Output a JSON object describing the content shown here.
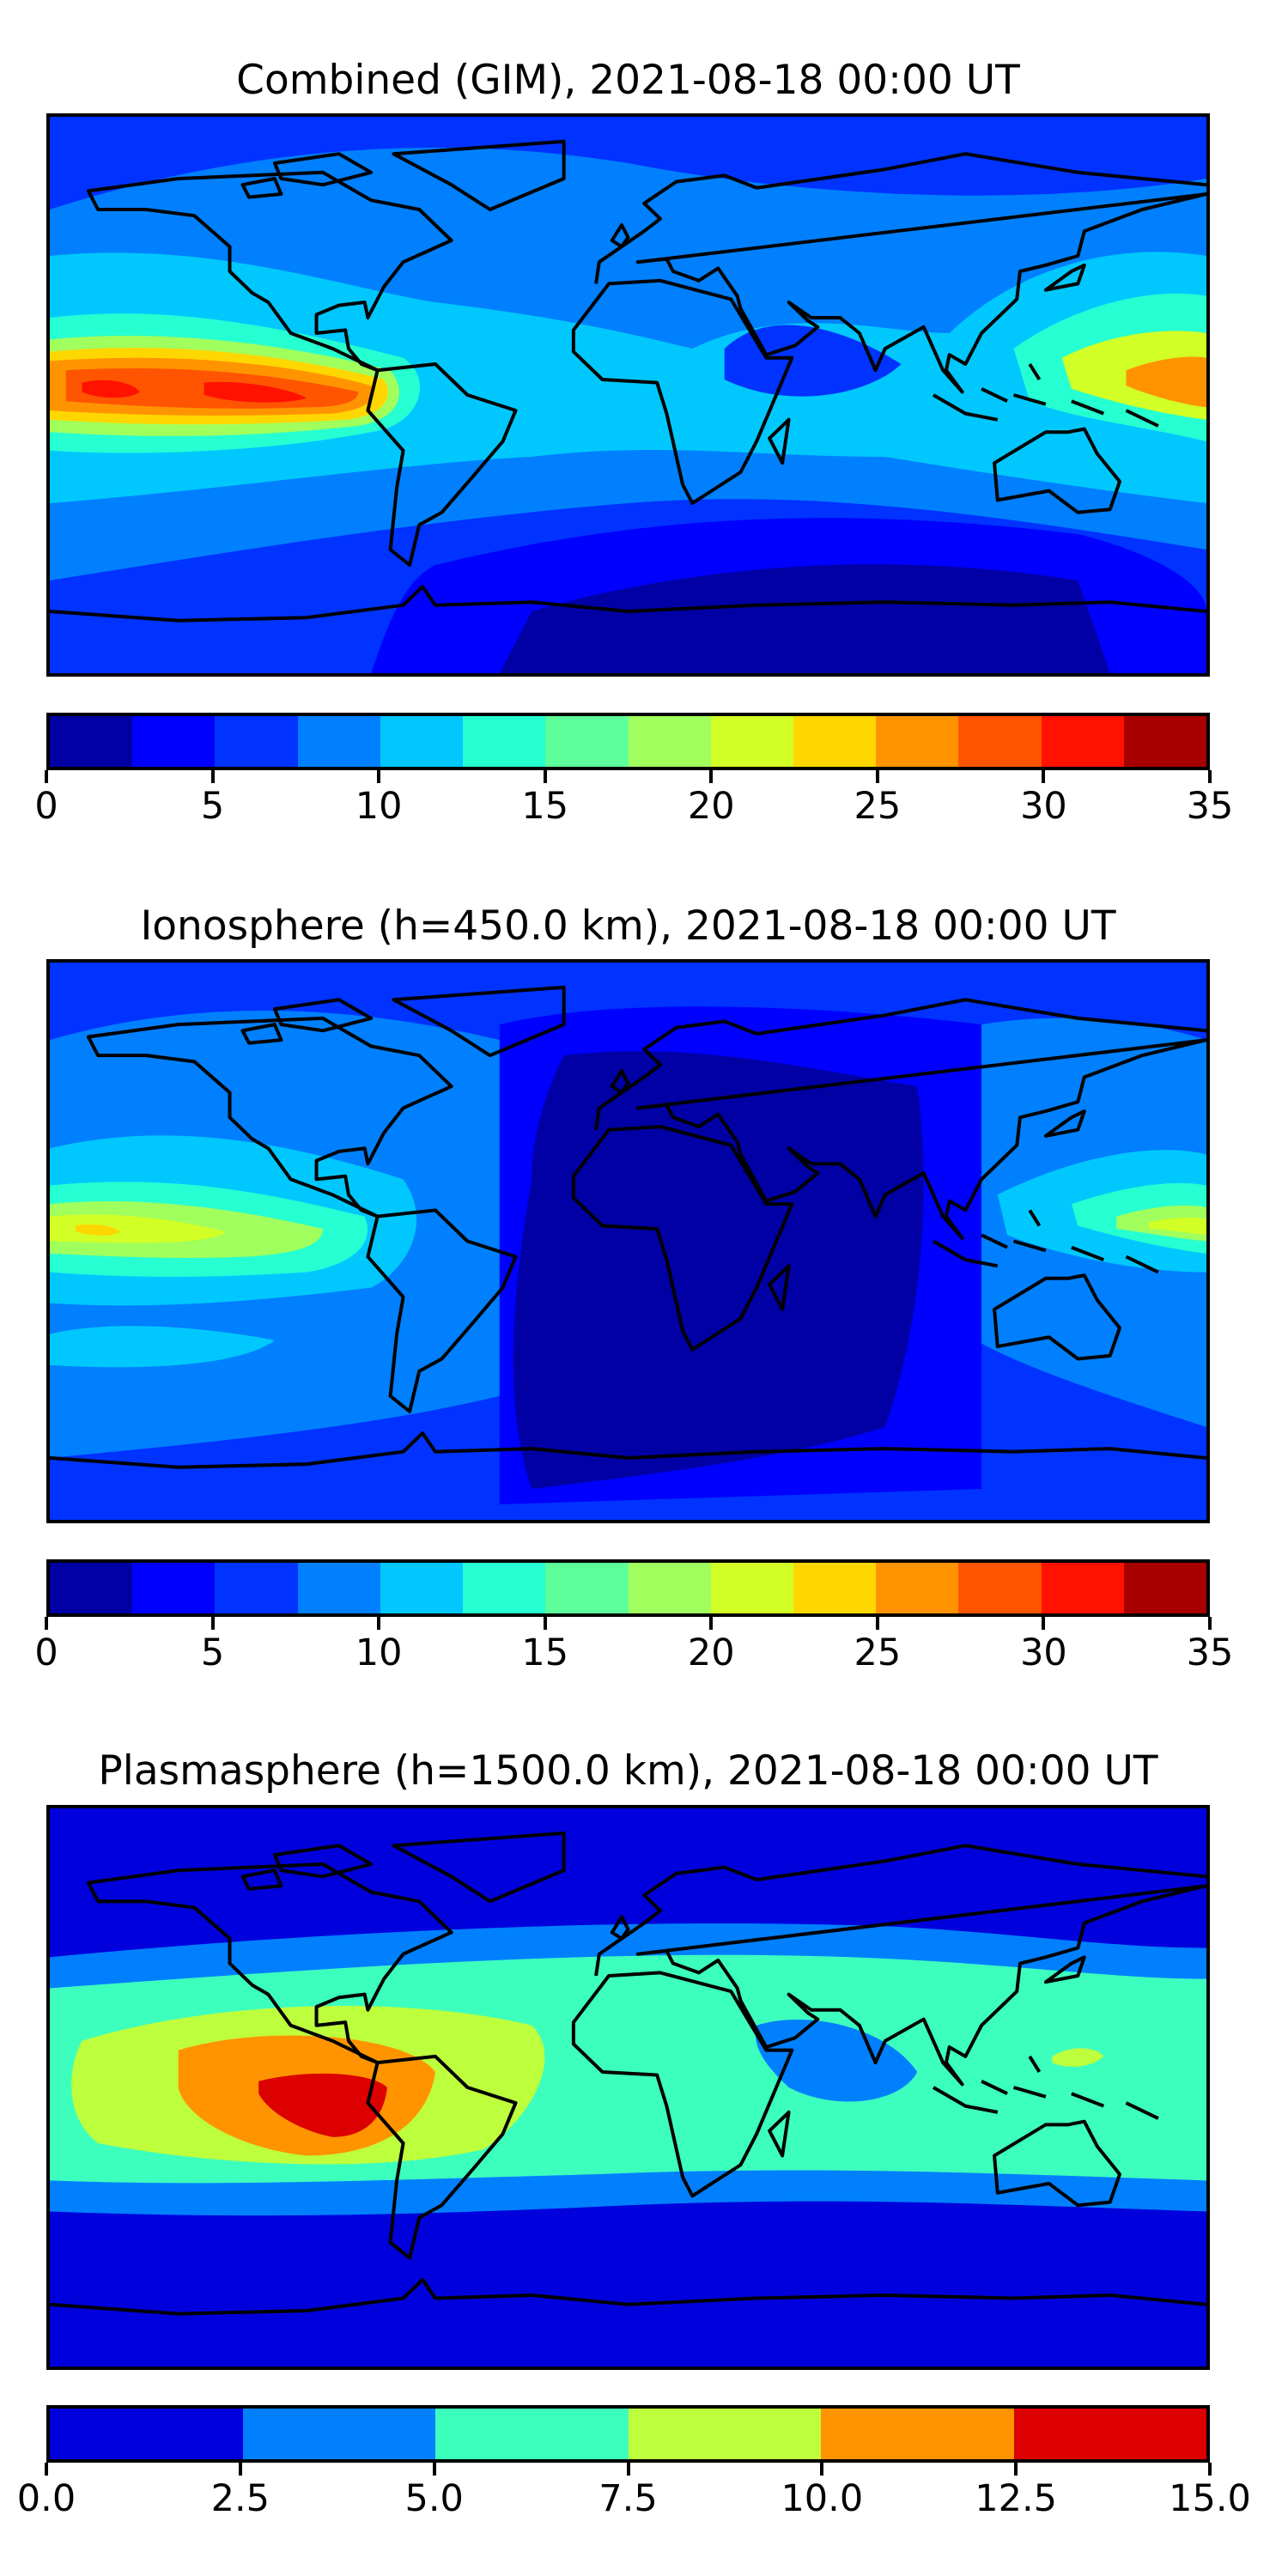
{
  "chart_data": [
    {
      "type": "heatmap",
      "title": "Combined (GIM), 2021-08-18 00:00 UT",
      "projection": "equirectangular world map with coastlines",
      "colorbar": {
        "levels": [
          0,
          2.5,
          5,
          7.5,
          10,
          12.5,
          15,
          17.5,
          20,
          22.5,
          25,
          27.5,
          30,
          32.5,
          35
        ],
        "ticks": [
          "0",
          "5",
          "10",
          "15",
          "20",
          "25",
          "30",
          "35"
        ],
        "tick_values": [
          0,
          5,
          10,
          15,
          20,
          25,
          30,
          35
        ],
        "range": [
          0,
          35
        ],
        "colors": [
          "#0000a4",
          "#0000ff",
          "#0033ff",
          "#0080ff",
          "#00c8ff",
          "#26ffd1",
          "#5dff9a",
          "#a0ff5d",
          "#d1ff26",
          "#ffd700",
          "#ff9400",
          "#ff5500",
          "#ff1200",
          "#a80000"
        ]
      }
    },
    {
      "type": "heatmap",
      "title": "Ionosphere  (h=450.0 km), 2021-08-18 00:00 UT",
      "projection": "equirectangular world map with coastlines",
      "colorbar": {
        "levels": [
          0,
          2.5,
          5,
          7.5,
          10,
          12.5,
          15,
          17.5,
          20,
          22.5,
          25,
          27.5,
          30,
          32.5,
          35
        ],
        "ticks": [
          "0",
          "5",
          "10",
          "15",
          "20",
          "25",
          "30",
          "35"
        ],
        "tick_values": [
          0,
          5,
          10,
          15,
          20,
          25,
          30,
          35
        ],
        "range": [
          0,
          35
        ],
        "colors": [
          "#0000a4",
          "#0000ff",
          "#0033ff",
          "#0080ff",
          "#00c8ff",
          "#26ffd1",
          "#5dff9a",
          "#a0ff5d",
          "#d1ff26",
          "#ffd700",
          "#ff9400",
          "#ff5500",
          "#ff1200",
          "#a80000"
        ]
      }
    },
    {
      "type": "heatmap",
      "title": "Plasmasphere (h=1500.0 km), 2021-08-18 00:00 UT",
      "projection": "equirectangular world map with coastlines",
      "colorbar": {
        "levels": [
          0,
          2.5,
          5,
          7.5,
          10,
          12.5,
          15
        ],
        "ticks": [
          "0.0",
          "2.5",
          "5.0",
          "7.5",
          "10.0",
          "12.5",
          "15.0"
        ],
        "tick_values": [
          0,
          2.5,
          5,
          7.5,
          10,
          12.5,
          15
        ],
        "range": [
          0,
          15
        ],
        "colors": [
          "#0000dc",
          "#0080ff",
          "#3dffbd",
          "#bdff3d",
          "#ff9400",
          "#dc0000"
        ]
      }
    }
  ]
}
